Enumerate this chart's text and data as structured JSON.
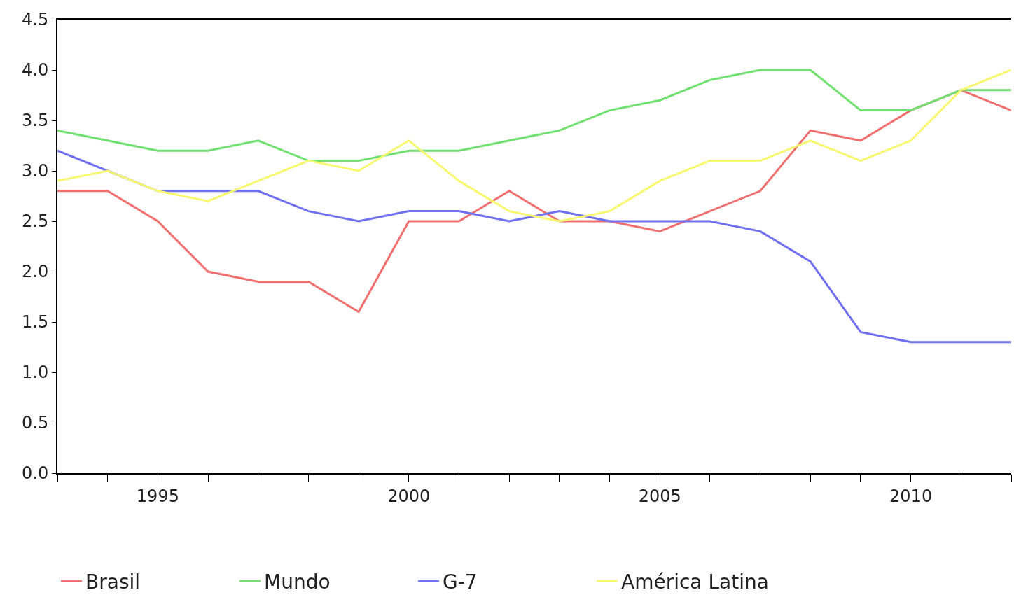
{
  "chart_data": {
    "type": "line",
    "x": [
      1993,
      1994,
      1995,
      1996,
      1997,
      1998,
      1999,
      2000,
      2001,
      2002,
      2003,
      2004,
      2005,
      2006,
      2007,
      2008,
      2009,
      2010,
      2011,
      2012
    ],
    "series": [
      {
        "name": "Brasil",
        "color": "#f07070",
        "values": [
          2.8,
          2.8,
          2.5,
          2.0,
          1.9,
          1.9,
          1.6,
          2.5,
          2.5,
          2.8,
          2.5,
          2.5,
          2.4,
          2.6,
          2.8,
          3.4,
          3.3,
          3.6,
          3.8,
          3.6
        ]
      },
      {
        "name": "Mundo",
        "color": "#70e070",
        "values": [
          3.4,
          3.3,
          3.2,
          3.2,
          3.3,
          3.1,
          3.1,
          3.2,
          3.2,
          3.3,
          3.4,
          3.6,
          3.7,
          3.9,
          4.0,
          4.0,
          3.6,
          3.6,
          3.8,
          3.8
        ]
      },
      {
        "name": "G-7",
        "color": "#7070f0",
        "values": [
          3.2,
          3.0,
          2.8,
          2.8,
          2.8,
          2.6,
          2.5,
          2.6,
          2.6,
          2.5,
          2.6,
          2.5,
          2.5,
          2.5,
          2.4,
          2.1,
          1.4,
          1.3,
          1.3,
          1.3
        ]
      },
      {
        "name": "América Latina",
        "color": "#f8f870",
        "values": [
          2.9,
          3.0,
          2.8,
          2.7,
          2.9,
          3.1,
          3.0,
          3.3,
          2.9,
          2.6,
          2.5,
          2.6,
          2.9,
          3.1,
          3.1,
          3.3,
          3.1,
          3.3,
          3.8,
          4.0
        ]
      }
    ],
    "xlim": [
      1993,
      2012
    ],
    "xticks": [
      {
        "value": 1993,
        "label": null
      },
      {
        "value": 1994,
        "label": null
      },
      1995,
      {
        "value": 1996,
        "label": null
      },
      {
        "value": 1997,
        "label": null
      },
      {
        "value": 1998,
        "label": null
      },
      {
        "value": 1999,
        "label": null
      },
      2000,
      {
        "value": 2001,
        "label": null
      },
      {
        "value": 2002,
        "label": null
      },
      {
        "value": 2003,
        "label": null
      },
      {
        "value": 2004,
        "label": null
      },
      2005,
      {
        "value": 2006,
        "label": null
      },
      {
        "value": 2007,
        "label": null
      },
      {
        "value": 2008,
        "label": null
      },
      {
        "value": 2009,
        "label": null
      },
      2010,
      {
        "value": 2011,
        "label": null
      },
      {
        "value": 2012,
        "label": null
      }
    ],
    "ylim": [
      0,
      4.5
    ],
    "yticks": [
      {
        "value": 0,
        "label": "0.0"
      },
      {
        "value": 0.5,
        "label": "0.5"
      },
      {
        "value": 1,
        "label": "1.0"
      },
      {
        "value": 1.5,
        "label": "1.5"
      },
      {
        "value": 2,
        "label": "2.0"
      },
      {
        "value": 2.5,
        "label": "2.5"
      },
      {
        "value": 3,
        "label": "3.0"
      },
      {
        "value": 3.5,
        "label": "3.5"
      },
      {
        "value": 4,
        "label": "4.0"
      },
      {
        "value": 4.5,
        "label": "4.5"
      }
    ],
    "legend": "bottom left",
    "marker": "none",
    "line_style": "solid"
  }
}
